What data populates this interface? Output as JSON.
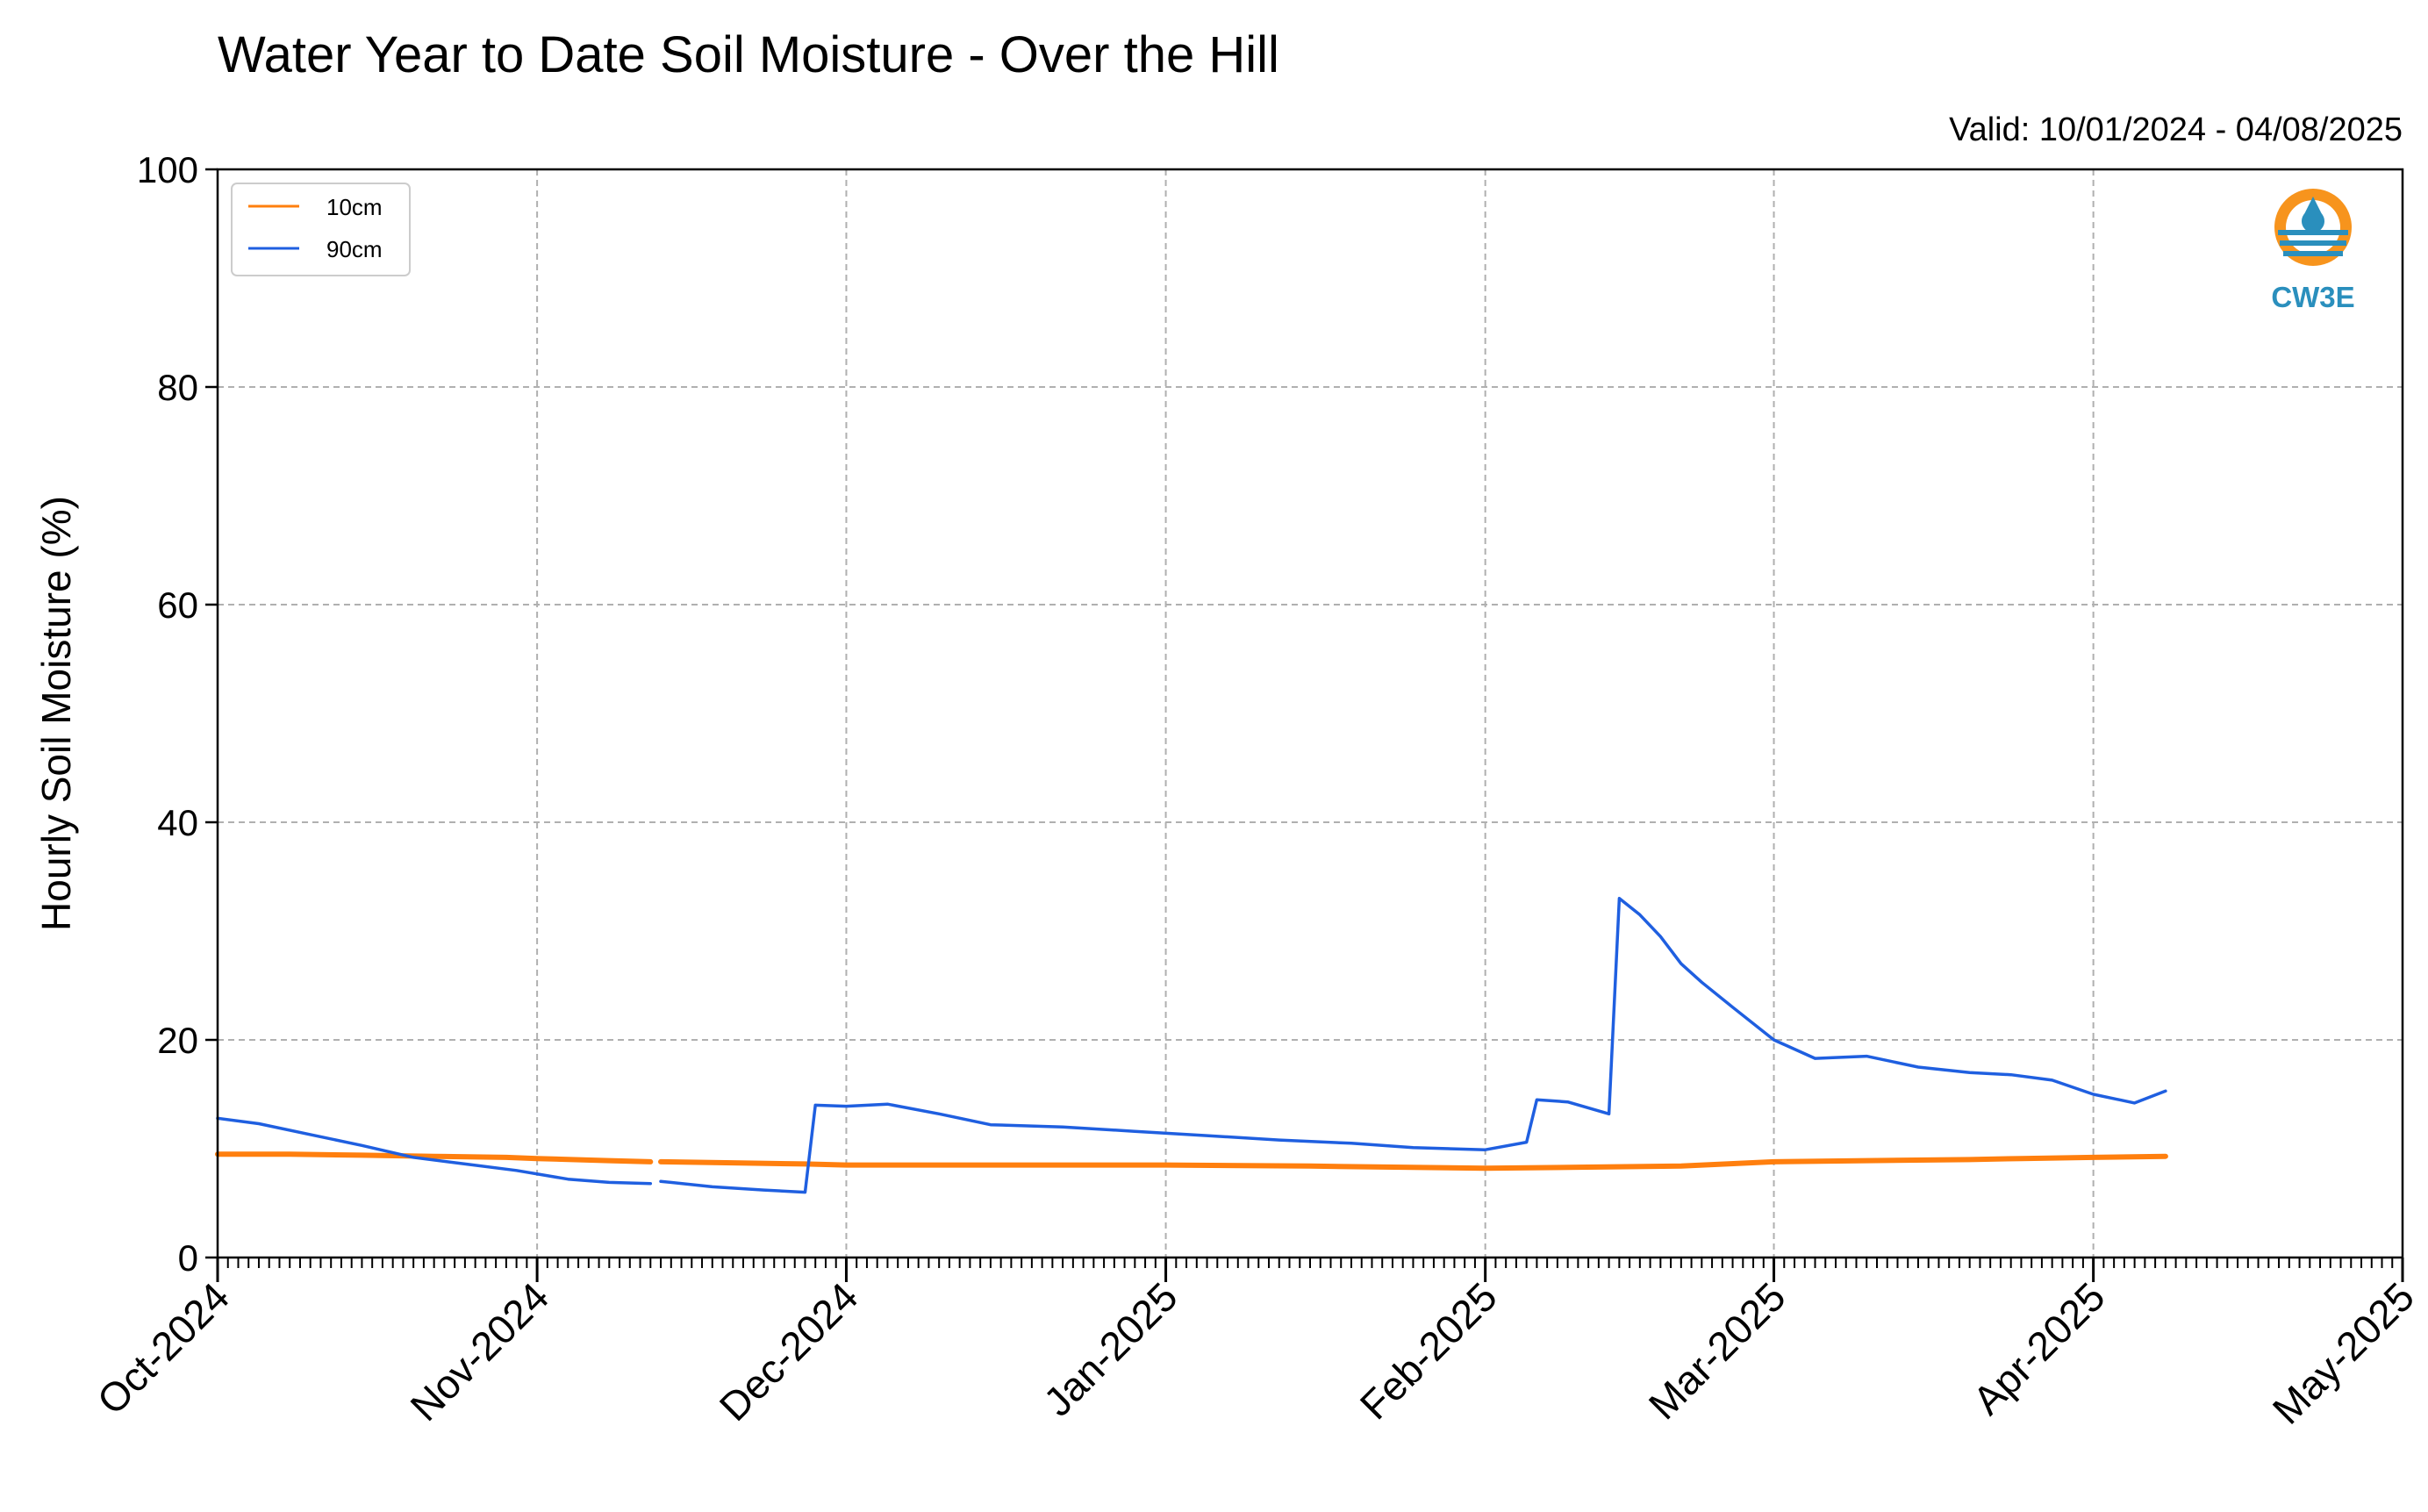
{
  "chart_data": {
    "type": "line",
    "title": "Water Year to Date Soil Moisture - Over the Hill",
    "subtitle": "Valid: 10/01/2024 - 04/08/2025",
    "xlabel": "",
    "ylabel": "Hourly Soil Moisture (%)",
    "ylim": [
      0,
      100
    ],
    "yticks": [
      0,
      20,
      40,
      60,
      80,
      100
    ],
    "xlim": [
      "2024-10-01",
      "2025-05-01"
    ],
    "xticks": [
      {
        "date": "2024-10-01",
        "label": "Oct-2024"
      },
      {
        "date": "2024-11-01",
        "label": "Nov-2024"
      },
      {
        "date": "2024-12-01",
        "label": "Dec-2024"
      },
      {
        "date": "2025-01-01",
        "label": "Jan-2025"
      },
      {
        "date": "2025-02-01",
        "label": "Feb-2025"
      },
      {
        "date": "2025-03-01",
        "label": "Mar-2025"
      },
      {
        "date": "2025-04-01",
        "label": "Apr-2025"
      },
      {
        "date": "2025-05-01",
        "label": "May-2025"
      }
    ],
    "grid": true,
    "legend": "top-left",
    "series": [
      {
        "name": "10cm",
        "color": "#ff7f0e",
        "points": [
          [
            "2024-10-01",
            9.5
          ],
          [
            "2024-10-08",
            9.5
          ],
          [
            "2024-10-15",
            9.4
          ],
          [
            "2024-10-22",
            9.3
          ],
          [
            "2024-10-29",
            9.2
          ],
          [
            "2024-11-01",
            9.1
          ],
          [
            "2024-11-08",
            8.9
          ],
          [
            "2024-11-12",
            8.8
          ],
          null,
          [
            "2024-11-13",
            8.8
          ],
          [
            "2024-11-20",
            8.7
          ],
          [
            "2024-11-27",
            8.6
          ],
          [
            "2024-12-01",
            8.5
          ],
          [
            "2024-12-15",
            8.5
          ],
          [
            "2025-01-01",
            8.5
          ],
          [
            "2025-01-15",
            8.4
          ],
          [
            "2025-02-01",
            8.2
          ],
          [
            "2025-02-10",
            8.3
          ],
          [
            "2025-02-20",
            8.4
          ],
          [
            "2025-03-01",
            8.8
          ],
          [
            "2025-03-10",
            8.9
          ],
          [
            "2025-03-20",
            9.0
          ],
          [
            "2025-03-25",
            9.1
          ],
          [
            "2025-04-01",
            9.2
          ],
          [
            "2025-04-08",
            9.3
          ]
        ]
      },
      {
        "name": "90cm",
        "color": "#1f5fe0",
        "points": [
          [
            "2024-10-01",
            12.8
          ],
          [
            "2024-10-05",
            12.3
          ],
          [
            "2024-10-10",
            11.3
          ],
          [
            "2024-10-15",
            10.3
          ],
          [
            "2024-10-20",
            9.2
          ],
          [
            "2024-10-25",
            8.6
          ],
          [
            "2024-10-30",
            8.0
          ],
          [
            "2024-11-04",
            7.2
          ],
          [
            "2024-11-08",
            6.9
          ],
          [
            "2024-11-12",
            6.8
          ],
          null,
          [
            "2024-11-13",
            7.0
          ],
          [
            "2024-11-18",
            6.5
          ],
          [
            "2024-11-23",
            6.2
          ],
          [
            "2024-11-27",
            6.0
          ],
          [
            "2024-11-28",
            14.0
          ],
          [
            "2024-12-01",
            13.9
          ],
          [
            "2024-12-05",
            14.1
          ],
          [
            "2024-12-10",
            13.2
          ],
          [
            "2024-12-15",
            12.2
          ],
          [
            "2024-12-22",
            12.0
          ],
          [
            "2024-12-29",
            11.6
          ],
          [
            "2025-01-05",
            11.2
          ],
          [
            "2025-01-12",
            10.8
          ],
          [
            "2025-01-19",
            10.5
          ],
          [
            "2025-01-25",
            10.1
          ],
          [
            "2025-02-01",
            9.9
          ],
          [
            "2025-02-05",
            10.6
          ],
          [
            "2025-02-06",
            14.5
          ],
          [
            "2025-02-09",
            14.3
          ],
          [
            "2025-02-13",
            13.2
          ],
          [
            "2025-02-14",
            33.0
          ],
          [
            "2025-02-16",
            31.5
          ],
          [
            "2025-02-18",
            29.5
          ],
          [
            "2025-02-20",
            27.0
          ],
          [
            "2025-02-22",
            25.3
          ],
          [
            "2025-02-25",
            23.0
          ],
          [
            "2025-03-01",
            20.0
          ],
          [
            "2025-03-05",
            18.3
          ],
          [
            "2025-03-10",
            18.5
          ],
          [
            "2025-03-15",
            17.5
          ],
          [
            "2025-03-20",
            17.0
          ],
          [
            "2025-03-24",
            16.8
          ],
          [
            "2025-03-28",
            16.3
          ],
          [
            "2025-04-01",
            15.0
          ],
          [
            "2025-04-05",
            14.2
          ],
          [
            "2025-04-08",
            15.3
          ]
        ]
      }
    ]
  },
  "logo": {
    "text": "CW3E",
    "color": "#2a8fbd",
    "accent": "#f7941d"
  }
}
